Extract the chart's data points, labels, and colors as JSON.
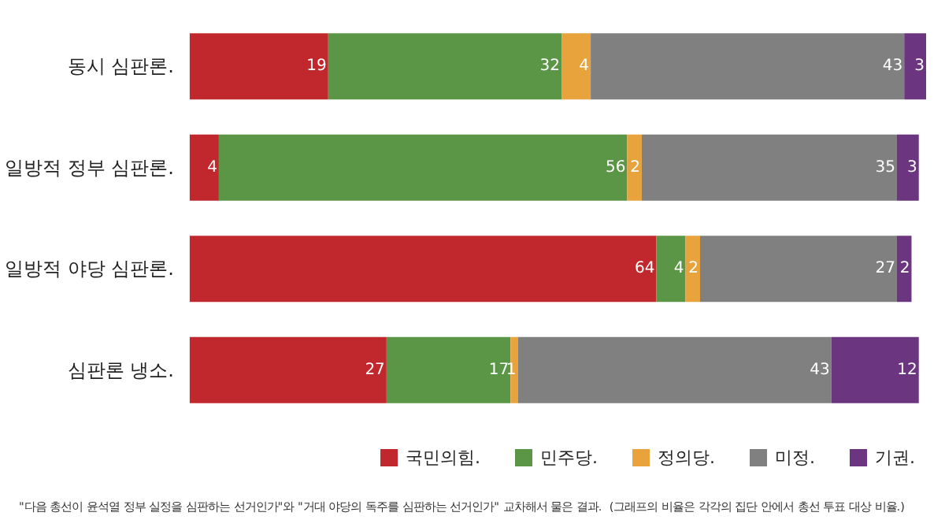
{
  "chart_data": {
    "type": "bar",
    "orientation": "horizontal",
    "stacked": true,
    "data_labels": true,
    "tick_labels": "y",
    "legend": "bottom right",
    "categories": [
      "동시 심판론.",
      "일방적 정부 심판론.",
      "일방적 야당 심판론.",
      "심판론 냉소."
    ],
    "series": [
      {
        "name": "국민의힘.",
        "color": "#c0282e",
        "values": [
          19,
          4,
          64,
          27
        ]
      },
      {
        "name": "민주당.",
        "color": "#5a9646",
        "values": [
          32,
          56,
          4,
          17
        ]
      },
      {
        "name": "정의당.",
        "color": "#e8a33c",
        "values": [
          4,
          2,
          2,
          1
        ]
      },
      {
        "name": "미정.",
        "color": "#808080",
        "values": [
          43,
          35,
          27,
          43
        ]
      },
      {
        "name": "기권.",
        "color": "#6c3580",
        "values": [
          3,
          3,
          2,
          12
        ]
      }
    ],
    "annotations": [
      "\"다음 총선이 윤석열 정부 실정을 심판하는 선거인가\"와 \"거대 야당의 독주를 심판하는 선거인가\" 교차해서 물은 결과.  (그래프의 비율은 각각의 집단 안에서 총선 투표 대상 비율.)"
    ]
  }
}
